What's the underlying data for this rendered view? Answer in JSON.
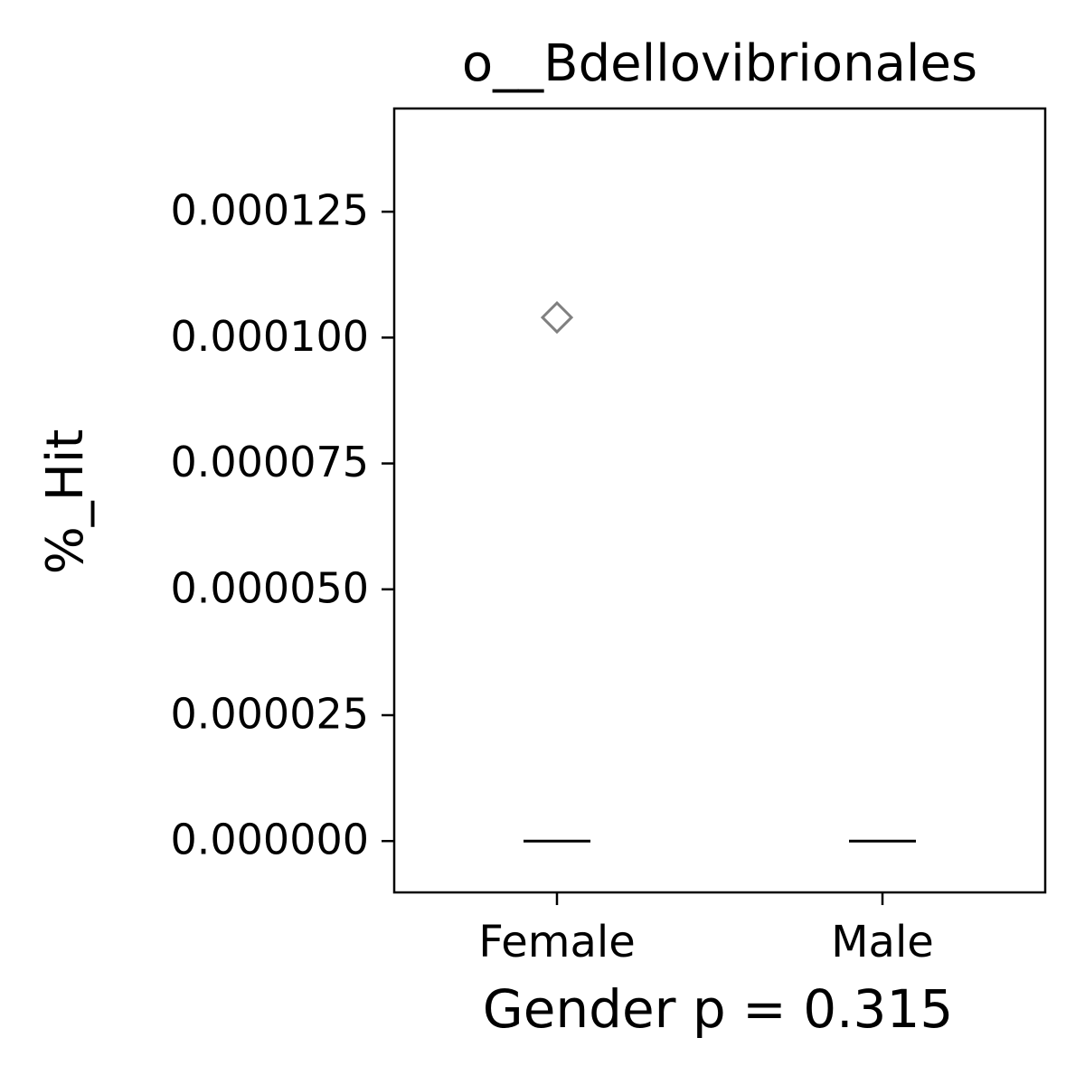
{
  "chart_data": {
    "type": "box",
    "title": "o__Bdellovibrionales",
    "xlabel": "Gender p = 0.315",
    "ylabel": "%_Hit",
    "categories": [
      "Female",
      "Male"
    ],
    "boxes": [
      {
        "whislo": 0,
        "q1": 0,
        "median": 0,
        "q3": 0,
        "whishi": 0,
        "fliers": [
          0.000104
        ]
      },
      {
        "whislo": 0,
        "q1": 0,
        "median": 0,
        "q3": 0,
        "whishi": 0,
        "fliers": []
      }
    ],
    "box_color": "#000000",
    "flier_color": "#808080",
    "ylim": [
      -1.02e-05,
      0.0001455
    ],
    "yticks": [
      {
        "value": 0,
        "label": "0.000000"
      },
      {
        "value": 2.5e-05,
        "label": "0.000025"
      },
      {
        "value": 5e-05,
        "label": "0.000050"
      },
      {
        "value": 7.5e-05,
        "label": "0.000075"
      },
      {
        "value": 0.0001,
        "label": "0.000100"
      },
      {
        "value": 0.000125,
        "label": "0.000125"
      }
    ]
  }
}
